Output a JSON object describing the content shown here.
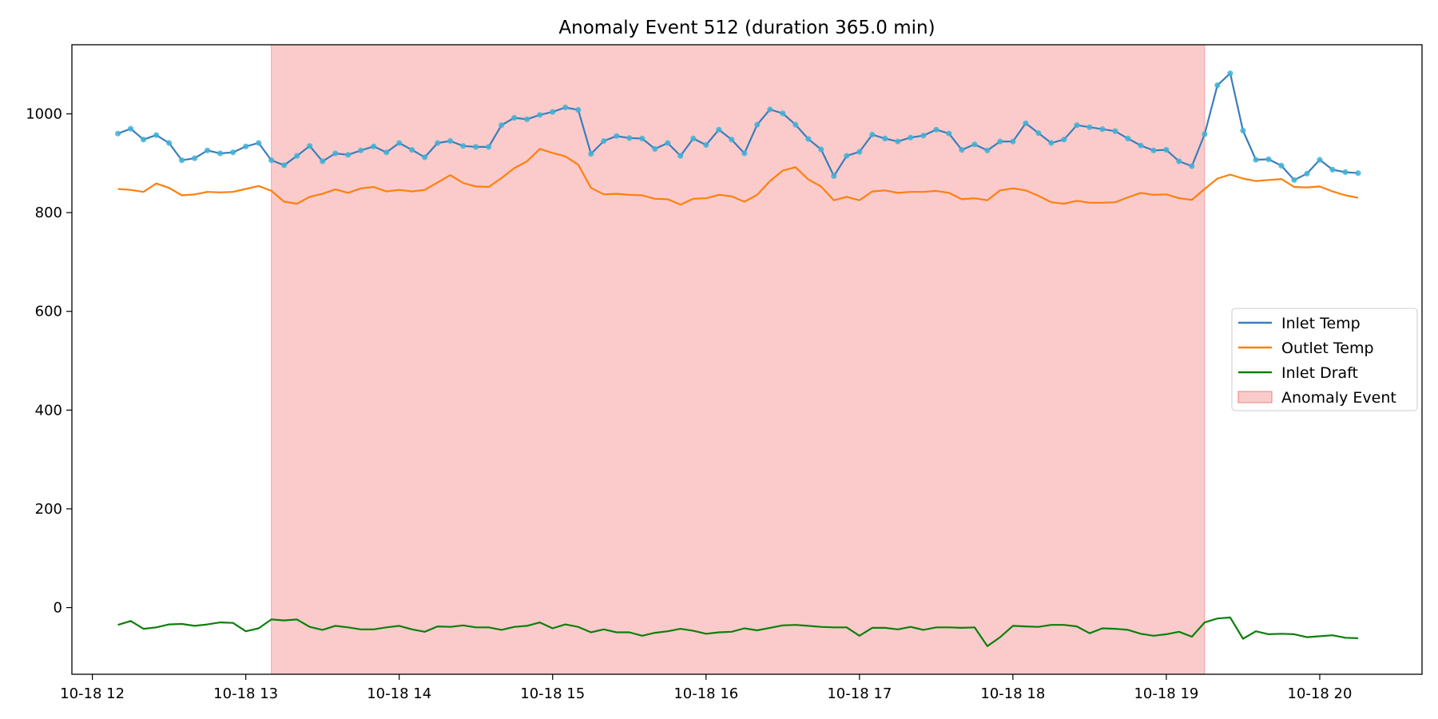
{
  "chart_data": {
    "type": "line",
    "title": "Anomaly Event 512 (duration 365.0 min)",
    "xlabel": "",
    "ylabel": "",
    "x_start": "2023-10-18 12:10",
    "x_step_minutes": 5,
    "xlim": [
      "2023-10-18 11:52",
      "2023-10-18 20:40"
    ],
    "ylim": [
      -135,
      1140
    ],
    "x_ticks": [
      {
        "label": "10-18 12",
        "time": "2023-10-18 12:00"
      },
      {
        "label": "10-18 13",
        "time": "2023-10-18 13:00"
      },
      {
        "label": "10-18 14",
        "time": "2023-10-18 14:00"
      },
      {
        "label": "10-18 15",
        "time": "2023-10-18 15:00"
      },
      {
        "label": "10-18 16",
        "time": "2023-10-18 16:00"
      },
      {
        "label": "10-18 17",
        "time": "2023-10-18 17:00"
      },
      {
        "label": "10-18 18",
        "time": "2023-10-18 18:00"
      },
      {
        "label": "10-18 19",
        "time": "2023-10-18 19:00"
      },
      {
        "label": "10-18 20",
        "time": "2023-10-18 20:00"
      }
    ],
    "y_ticks": [
      0,
      200,
      400,
      600,
      800,
      1000
    ],
    "grid": false,
    "legend_position": "center-right",
    "anomaly_event": {
      "label": "Anomaly Event",
      "start": "2023-10-18 13:10",
      "end": "2023-10-18 19:15",
      "color": "#f8a0a0"
    },
    "series": [
      {
        "name": "Inlet Temp",
        "color": "#3b7dba",
        "marker_color": "#41b3d6",
        "markers": true,
        "values": [
          960,
          970,
          948,
          957,
          941,
          906,
          910,
          926,
          920,
          922,
          934,
          941,
          906,
          896,
          915,
          935,
          904,
          920,
          917,
          926,
          934,
          922,
          941,
          927,
          912,
          941,
          945,
          935,
          933,
          933,
          977,
          992,
          989,
          998,
          1004,
          1013,
          1008,
          919,
          945,
          955,
          951,
          950,
          929,
          941,
          915,
          950,
          937,
          968,
          948,
          920,
          978,
          1009,
          1001,
          978,
          949,
          928,
          874,
          915,
          923,
          958,
          950,
          944,
          952,
          956,
          968,
          960,
          927,
          938,
          926,
          944,
          944,
          981,
          961,
          941,
          948,
          977,
          973,
          969,
          965,
          950,
          936,
          926,
          927,
          904,
          894,
          959,
          1058,
          1082,
          966,
          907,
          908,
          895,
          866,
          879,
          907,
          887,
          882,
          880
        ]
      },
      {
        "name": "Outlet Temp",
        "color": "#ff7f0e",
        "markers": false,
        "values": [
          848,
          846,
          842,
          859,
          850,
          835,
          837,
          842,
          841,
          842,
          848,
          854,
          844,
          822,
          818,
          832,
          838,
          847,
          840,
          849,
          852,
          843,
          846,
          843,
          846,
          861,
          876,
          860,
          853,
          852,
          870,
          890,
          904,
          929,
          921,
          914,
          897,
          850,
          837,
          838,
          836,
          835,
          828,
          827,
          816,
          828,
          829,
          836,
          833,
          822,
          836,
          864,
          885,
          892,
          867,
          853,
          825,
          832,
          825,
          843,
          845,
          840,
          842,
          842,
          844,
          840,
          827,
          829,
          825,
          845,
          849,
          845,
          834,
          821,
          818,
          824,
          820,
          820,
          821,
          831,
          840,
          836,
          837,
          829,
          826,
          848,
          869,
          877,
          869,
          864,
          866,
          868,
          852,
          851,
          853,
          843,
          835,
          830
        ]
      },
      {
        "name": "Inlet Draft",
        "color": "#0a800a",
        "markers": false,
        "values": [
          -35,
          -27,
          -43,
          -40,
          -34,
          -33,
          -37,
          -34,
          -30,
          -31,
          -48,
          -42,
          -24,
          -26,
          -24,
          -39,
          -45,
          -37,
          -40,
          -44,
          -44,
          -40,
          -37,
          -44,
          -49,
          -38,
          -39,
          -36,
          -40,
          -40,
          -45,
          -39,
          -37,
          -30,
          -42,
          -34,
          -39,
          -50,
          -44,
          -50,
          -50,
          -57,
          -51,
          -48,
          -43,
          -47,
          -53,
          -50,
          -49,
          -42,
          -46,
          -41,
          -36,
          -35,
          -37,
          -39,
          -40,
          -40,
          -57,
          -41,
          -41,
          -44,
          -39,
          -45,
          -40,
          -40,
          -41,
          -40,
          -78,
          -60,
          -37,
          -38,
          -39,
          -35,
          -35,
          -38,
          -52,
          -42,
          -43,
          -45,
          -53,
          -57,
          -54,
          -49,
          -59,
          -30,
          -22,
          -20,
          -63,
          -48,
          -54,
          -53,
          -54,
          -60,
          -58,
          -56,
          -61,
          -62
        ]
      }
    ],
    "legend_entries": [
      "Inlet Temp",
      "Outlet Temp",
      "Inlet Draft",
      "Anomaly Event"
    ]
  }
}
